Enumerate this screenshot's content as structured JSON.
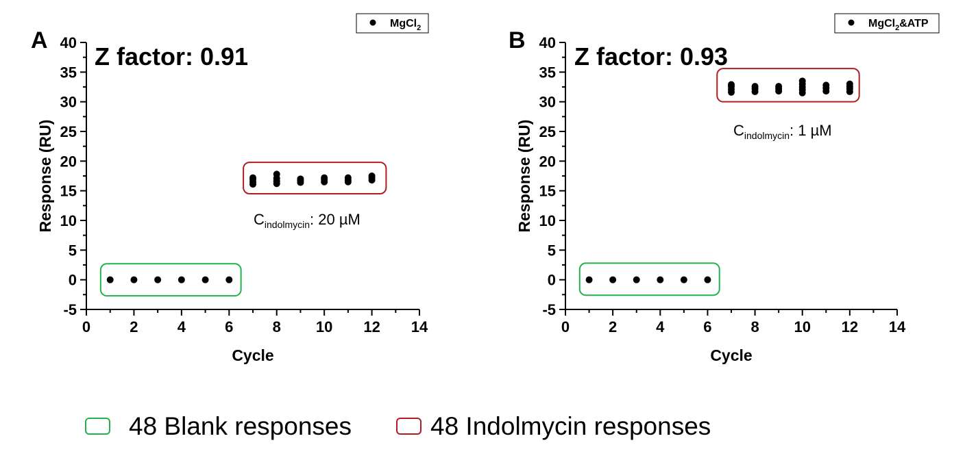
{
  "chart_data": [
    {
      "type": "scatter",
      "panel_label": "A",
      "annotation_title": "Z factor: 0.91",
      "xlabel": "Cycle",
      "ylabel": "Response (RU)",
      "xlim": [
        0,
        14
      ],
      "ylim": [
        -5,
        40
      ],
      "x_ticks": [
        0,
        2,
        4,
        6,
        8,
        10,
        12,
        14
      ],
      "y_ticks": [
        -5,
        0,
        5,
        10,
        15,
        20,
        25,
        30,
        35,
        40
      ],
      "legend": {
        "label": "MgCl",
        "subscript": "2",
        "suffix": "",
        "position": "top-right"
      },
      "concentration_label": {
        "symbol": "C",
        "subscript": "indolmycin",
        "value": ": 20 µM"
      },
      "series": [
        {
          "group": "blank",
          "points": [
            [
              1,
              0
            ],
            [
              2,
              0
            ],
            [
              3,
              0
            ],
            [
              4,
              0
            ],
            [
              5,
              0
            ],
            [
              6,
              0
            ]
          ]
        },
        {
          "group": "indolmycin",
          "points": [
            [
              7,
              16.1
            ],
            [
              7,
              16.5
            ],
            [
              7,
              16.9
            ],
            [
              7,
              17.2
            ],
            [
              8,
              16.2
            ],
            [
              8,
              16.6
            ],
            [
              8,
              17.1
            ],
            [
              8,
              17.8
            ],
            [
              9,
              16.4
            ],
            [
              9,
              16.7
            ],
            [
              9,
              17.0
            ],
            [
              10,
              16.5
            ],
            [
              10,
              16.9
            ],
            [
              10,
              17.2
            ],
            [
              11,
              16.5
            ],
            [
              11,
              16.8
            ],
            [
              11,
              17.2
            ],
            [
              12,
              16.8
            ],
            [
              12,
              17.2
            ],
            [
              12,
              17.5
            ]
          ]
        }
      ]
    },
    {
      "type": "scatter",
      "panel_label": "B",
      "annotation_title": "Z factor: 0.93",
      "xlabel": "Cycle",
      "ylabel": "Response (RU)",
      "xlim": [
        0,
        14
      ],
      "ylim": [
        -5,
        40
      ],
      "x_ticks": [
        0,
        2,
        4,
        6,
        8,
        10,
        12,
        14
      ],
      "y_ticks": [
        -5,
        0,
        5,
        10,
        15,
        20,
        25,
        30,
        35,
        40
      ],
      "legend": {
        "label": "MgCl",
        "subscript": "2",
        "suffix": "&ATP",
        "position": "top-right"
      },
      "concentration_label": {
        "symbol": "C",
        "subscript": "indolmycin",
        "value": ": 1 µM"
      },
      "series": [
        {
          "group": "blank",
          "points": [
            [
              1,
              0
            ],
            [
              2,
              0
            ],
            [
              3,
              0
            ],
            [
              4,
              0
            ],
            [
              5,
              0
            ],
            [
              6,
              0
            ]
          ]
        },
        {
          "group": "indolmycin",
          "points": [
            [
              7,
              31.6
            ],
            [
              7,
              32.1
            ],
            [
              7,
              32.6
            ],
            [
              7,
              32.9
            ],
            [
              8,
              31.7
            ],
            [
              8,
              32.2
            ],
            [
              8,
              32.6
            ],
            [
              9,
              31.8
            ],
            [
              9,
              32.2
            ],
            [
              9,
              32.6
            ],
            [
              10,
              31.5
            ],
            [
              10,
              32.0
            ],
            [
              10,
              32.5
            ],
            [
              10,
              33.0
            ],
            [
              10,
              33.5
            ],
            [
              11,
              31.8
            ],
            [
              11,
              32.3
            ],
            [
              11,
              32.8
            ],
            [
              12,
              31.7
            ],
            [
              12,
              32.2
            ],
            [
              12,
              32.6
            ],
            [
              12,
              33.0
            ]
          ]
        }
      ]
    }
  ],
  "bottom_legend": {
    "blank": {
      "label": "48 Blank responses",
      "color": "#22b14c"
    },
    "indolmycin": {
      "label": "48 Indolmycin responses",
      "color": "#b01e23"
    }
  },
  "colors": {
    "points": "#000000",
    "axes": "#000000"
  }
}
